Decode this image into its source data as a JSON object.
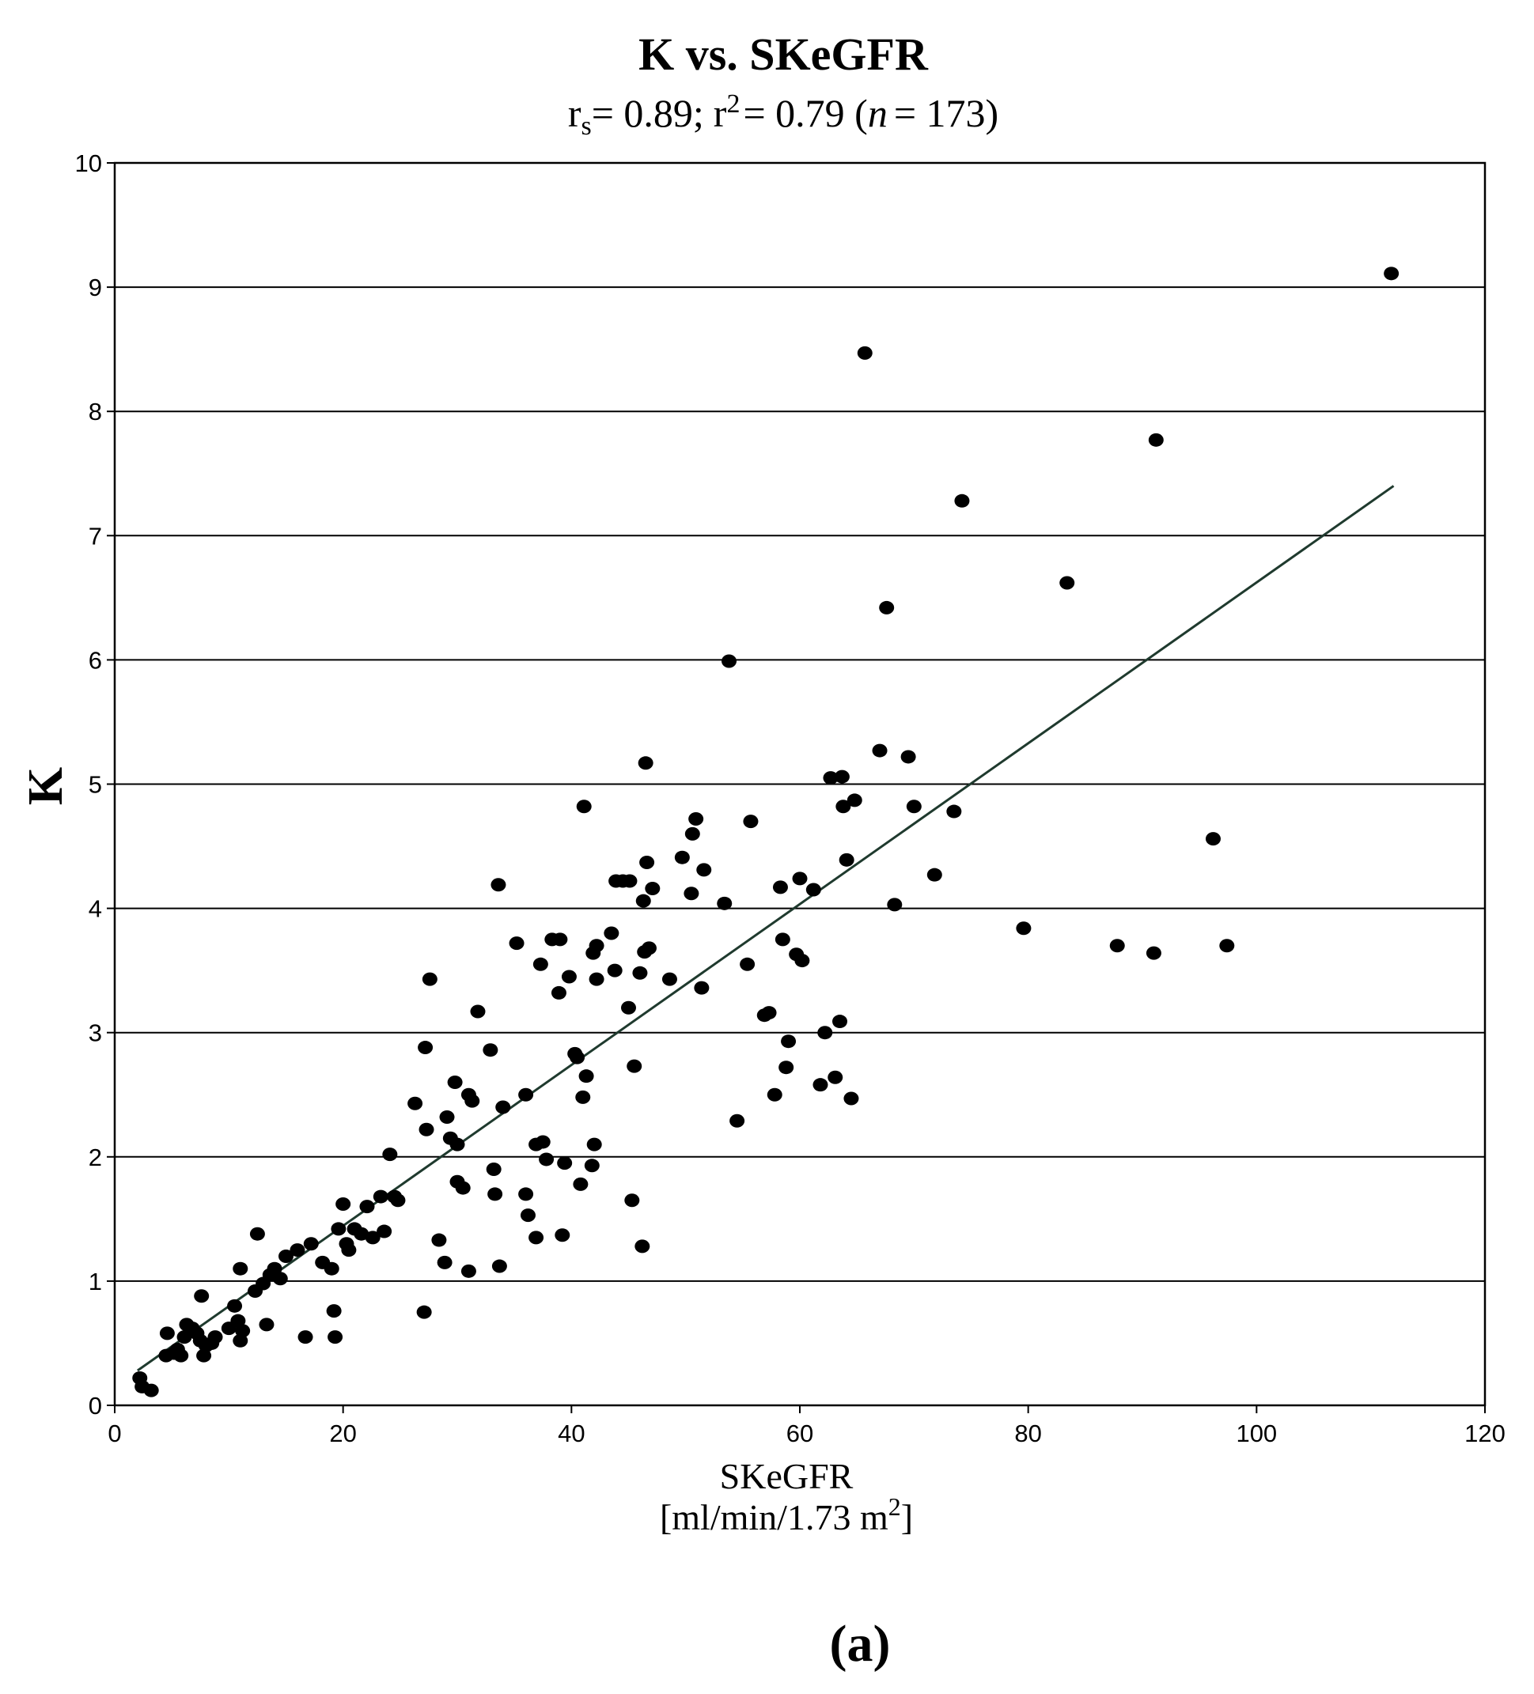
{
  "chart_data": {
    "type": "scatter",
    "title": "K vs. SKeGFR",
    "subtitle": {
      "rs_symbol": "r",
      "rs_sub": "s",
      "rs_value": "= 0.89;",
      "r2_symbol": "r",
      "r2_sup": "2",
      "r2_value": "= 0.79 (",
      "n_symbol": "n",
      "n_value": "= 173)"
    },
    "xlabel": "SKeGFR",
    "xunit_text": "[ml/min/1.73 m",
    "xunit_sup": "2",
    "xunit_close": "]",
    "ylabel": "K",
    "panel_label": "(a)",
    "xlim": [
      0,
      120
    ],
    "ylim": [
      0,
      10
    ],
    "xticks": [
      0,
      20,
      40,
      60,
      80,
      100,
      120
    ],
    "yticks": [
      0,
      1,
      2,
      3,
      4,
      5,
      6,
      7,
      8,
      9,
      10
    ],
    "grid": "horizontal",
    "colors": {
      "points": "#000000",
      "trendline": "#1f3a2e",
      "grid": "#000000",
      "frame": "#000000"
    },
    "trendline": {
      "x": [
        2,
        112
      ],
      "y": [
        0.28,
        7.4
      ]
    },
    "points": [
      [
        2.2,
        0.22
      ],
      [
        2.4,
        0.15
      ],
      [
        3.2,
        0.12
      ],
      [
        4.5,
        0.4
      ],
      [
        4.6,
        0.58
      ],
      [
        5.2,
        0.42
      ],
      [
        5.5,
        0.45
      ],
      [
        5.8,
        0.4
      ],
      [
        6.1,
        0.55
      ],
      [
        6.3,
        0.65
      ],
      [
        6.8,
        0.62
      ],
      [
        7.2,
        0.58
      ],
      [
        7.5,
        0.52
      ],
      [
        7.6,
        0.88
      ],
      [
        7.8,
        0.4
      ],
      [
        8.0,
        0.48
      ],
      [
        8.5,
        0.5
      ],
      [
        8.8,
        0.55
      ],
      [
        10.0,
        0.62
      ],
      [
        10.5,
        0.8
      ],
      [
        10.8,
        0.68
      ],
      [
        11.0,
        0.52
      ],
      [
        11.0,
        1.1
      ],
      [
        11.2,
        0.6
      ],
      [
        12.3,
        0.92
      ],
      [
        12.5,
        1.38
      ],
      [
        13.0,
        0.98
      ],
      [
        13.3,
        0.65
      ],
      [
        13.6,
        1.05
      ],
      [
        14.0,
        1.1
      ],
      [
        14.5,
        1.02
      ],
      [
        15.0,
        1.2
      ],
      [
        16.0,
        1.25
      ],
      [
        16.7,
        0.55
      ],
      [
        17.2,
        1.3
      ],
      [
        18.2,
        1.15
      ],
      [
        19.0,
        1.1
      ],
      [
        19.2,
        0.76
      ],
      [
        19.3,
        0.55
      ],
      [
        19.6,
        1.42
      ],
      [
        20.0,
        1.62
      ],
      [
        20.3,
        1.3
      ],
      [
        20.5,
        1.25
      ],
      [
        21.0,
        1.42
      ],
      [
        21.6,
        1.38
      ],
      [
        22.1,
        1.6
      ],
      [
        22.6,
        1.35
      ],
      [
        23.3,
        1.68
      ],
      [
        23.6,
        1.4
      ],
      [
        24.1,
        2.02
      ],
      [
        24.5,
        1.68
      ],
      [
        24.8,
        1.65
      ],
      [
        26.3,
        2.43
      ],
      [
        27.1,
        0.75
      ],
      [
        27.2,
        2.88
      ],
      [
        27.3,
        2.22
      ],
      [
        27.6,
        3.43
      ],
      [
        28.4,
        1.33
      ],
      [
        28.9,
        1.15
      ],
      [
        29.1,
        2.32
      ],
      [
        29.4,
        2.15
      ],
      [
        29.8,
        2.6
      ],
      [
        30.0,
        1.8
      ],
      [
        30.0,
        2.1
      ],
      [
        30.5,
        1.75
      ],
      [
        31.0,
        2.5
      ],
      [
        31.0,
        1.08
      ],
      [
        31.3,
        2.45
      ],
      [
        31.8,
        3.17
      ],
      [
        32.9,
        2.86
      ],
      [
        33.2,
        1.9
      ],
      [
        33.3,
        1.7
      ],
      [
        33.6,
        4.19
      ],
      [
        33.7,
        1.12
      ],
      [
        34.0,
        2.4
      ],
      [
        35.2,
        3.72
      ],
      [
        36.0,
        2.5
      ],
      [
        36.0,
        1.7
      ],
      [
        36.2,
        1.53
      ],
      [
        36.9,
        2.1
      ],
      [
        36.9,
        1.35
      ],
      [
        37.3,
        3.55
      ],
      [
        37.5,
        2.12
      ],
      [
        37.8,
        1.98
      ],
      [
        38.3,
        3.75
      ],
      [
        38.9,
        3.32
      ],
      [
        39.0,
        3.75
      ],
      [
        39.2,
        1.37
      ],
      [
        39.4,
        1.95
      ],
      [
        39.8,
        3.45
      ],
      [
        40.3,
        2.83
      ],
      [
        40.5,
        2.8
      ],
      [
        40.8,
        1.78
      ],
      [
        41.0,
        2.48
      ],
      [
        41.1,
        4.82
      ],
      [
        41.3,
        2.65
      ],
      [
        41.8,
        1.93
      ],
      [
        41.9,
        3.64
      ],
      [
        42.0,
        2.1
      ],
      [
        42.2,
        3.7
      ],
      [
        42.2,
        3.43
      ],
      [
        43.5,
        3.8
      ],
      [
        43.8,
        3.5
      ],
      [
        43.9,
        4.22
      ],
      [
        44.5,
        4.22
      ],
      [
        45.0,
        3.2
      ],
      [
        45.1,
        4.22
      ],
      [
        45.3,
        1.65
      ],
      [
        45.5,
        2.73
      ],
      [
        46.0,
        3.48
      ],
      [
        46.2,
        1.28
      ],
      [
        46.3,
        4.06
      ],
      [
        46.4,
        3.65
      ],
      [
        46.5,
        5.17
      ],
      [
        46.6,
        4.37
      ],
      [
        46.8,
        3.68
      ],
      [
        47.1,
        4.16
      ],
      [
        48.6,
        3.43
      ],
      [
        49.7,
        4.41
      ],
      [
        50.5,
        4.12
      ],
      [
        50.6,
        4.6
      ],
      [
        50.9,
        4.72
      ],
      [
        51.4,
        3.36
      ],
      [
        51.6,
        4.31
      ],
      [
        53.4,
        4.04
      ],
      [
        53.8,
        5.99
      ],
      [
        54.5,
        2.29
      ],
      [
        55.4,
        3.55
      ],
      [
        55.7,
        4.7
      ],
      [
        56.9,
        3.14
      ],
      [
        57.3,
        3.16
      ],
      [
        57.8,
        2.5
      ],
      [
        58.3,
        4.17
      ],
      [
        58.5,
        3.75
      ],
      [
        58.8,
        2.72
      ],
      [
        59.0,
        2.93
      ],
      [
        59.7,
        3.63
      ],
      [
        60.0,
        4.24
      ],
      [
        60.2,
        3.58
      ],
      [
        61.2,
        4.15
      ],
      [
        61.8,
        2.58
      ],
      [
        62.2,
        3.0
      ],
      [
        62.7,
        5.05
      ],
      [
        63.1,
        2.64
      ],
      [
        63.5,
        3.09
      ],
      [
        63.7,
        5.06
      ],
      [
        63.8,
        4.82
      ],
      [
        64.1,
        4.39
      ],
      [
        64.5,
        2.47
      ],
      [
        64.8,
        4.87
      ],
      [
        65.7,
        8.47
      ],
      [
        67.0,
        5.27
      ],
      [
        67.6,
        6.42
      ],
      [
        68.3,
        4.03
      ],
      [
        69.5,
        5.22
      ],
      [
        70.0,
        4.82
      ],
      [
        71.8,
        4.27
      ],
      [
        73.5,
        4.78
      ],
      [
        74.2,
        7.28
      ],
      [
        79.6,
        3.84
      ],
      [
        83.4,
        6.62
      ],
      [
        87.8,
        3.7
      ],
      [
        91.0,
        3.64
      ],
      [
        91.2,
        7.77
      ],
      [
        96.2,
        4.56
      ],
      [
        97.4,
        3.7
      ],
      [
        111.8,
        9.11
      ]
    ]
  }
}
